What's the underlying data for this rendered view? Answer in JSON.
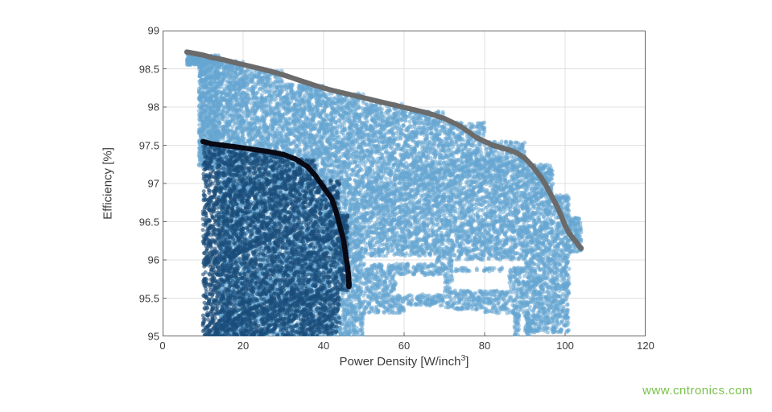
{
  "chart": {
    "type": "scatter",
    "xlabel_html": "Power Density [W/inch<sup>3</sup>]",
    "ylabel": "Efficiency [%]",
    "xlim": [
      0,
      120
    ],
    "ylim": [
      95,
      99
    ],
    "xtick_step": 20,
    "ytick_step": 0.5,
    "xticks": [
      0,
      20,
      40,
      60,
      80,
      100,
      120
    ],
    "yticks": [
      95,
      95.5,
      96,
      96.5,
      97,
      97.5,
      98,
      98.5,
      99
    ],
    "background_color": "#ffffff",
    "grid_color": "#e0e0e0",
    "axis_color": "#666666",
    "label_fontsize": 15,
    "tick_fontsize": 13,
    "font_color": "#3b3b3b",
    "series": {
      "light_blue_cloud": {
        "color": "#66a6d2",
        "opacity": 0.55,
        "marker": "circle",
        "marker_size": 5,
        "bands": [
          {
            "x": [
              6,
              9
            ],
            "y": [
              98.55,
              98.7
            ],
            "n": 140
          },
          {
            "x": [
              9,
              14
            ],
            "y": [
              97.2,
              98.68
            ],
            "n": 900
          },
          {
            "x": [
              14,
              20
            ],
            "y": [
              95.0,
              98.6
            ],
            "n": 1800
          },
          {
            "x": [
              20,
              30
            ],
            "y": [
              95.0,
              98.48
            ],
            "n": 2400
          },
          {
            "x": [
              30,
              40
            ],
            "y": [
              95.0,
              98.3
            ],
            "n": 2400
          },
          {
            "x": [
              40,
              50
            ],
            "y": [
              95.0,
              98.18
            ],
            "n": 2200
          },
          {
            "x": [
              50,
              60
            ],
            "y": [
              95.3,
              98.05
            ],
            "n": 1800
          },
          {
            "x": [
              60,
              70
            ],
            "y": [
              95.4,
              97.95
            ],
            "n": 1700
          },
          {
            "x": [
              70,
              80
            ],
            "y": [
              95.35,
              97.8
            ],
            "n": 1600
          },
          {
            "x": [
              80,
              90
            ],
            "y": [
              95.3,
              97.55
            ],
            "n": 1500
          },
          {
            "x": [
              90,
              97
            ],
            "y": [
              95.05,
              97.25
            ],
            "n": 1100
          },
          {
            "x": [
              97,
              101
            ],
            "y": [
              95.05,
              96.85
            ],
            "n": 500
          },
          {
            "x": [
              101,
              104
            ],
            "y": [
              96.1,
              96.55
            ],
            "n": 120
          }
        ],
        "gaps": [
          {
            "x": [
              58,
              70
            ],
            "y": [
              95.55,
              95.8
            ]
          },
          {
            "x": [
              72,
              86
            ],
            "y": [
              95.6,
              95.85
            ]
          },
          {
            "x": [
              50,
              68
            ],
            "y": [
              95.95,
              96.05
            ]
          },
          {
            "x": [
              72,
              90
            ],
            "y": [
              95.9,
              96.0
            ]
          }
        ],
        "spikes": [
          {
            "x": 88,
            "y": [
              95.0,
              95.3
            ]
          },
          {
            "x": 91,
            "y": [
              95.0,
              95.3
            ]
          }
        ]
      },
      "dark_blue_cloud": {
        "color": "#1a4d7a",
        "opacity": 0.6,
        "marker": "circle",
        "marker_size": 5,
        "bands": [
          {
            "x": [
              10,
              14
            ],
            "y": [
              95.0,
              97.52
            ],
            "n": 600
          },
          {
            "x": [
              14,
              20
            ],
            "y": [
              95.0,
              97.48
            ],
            "n": 900
          },
          {
            "x": [
              20,
              30
            ],
            "y": [
              95.0,
              97.42
            ],
            "n": 1300
          },
          {
            "x": [
              30,
              38
            ],
            "y": [
              95.0,
              97.32
            ],
            "n": 1000
          },
          {
            "x": [
              38,
              44
            ],
            "y": [
              95.0,
              97.05
            ],
            "n": 600
          },
          {
            "x": [
              44,
              46
            ],
            "y": [
              95.6,
              96.6
            ],
            "n": 160
          }
        ],
        "pareto_x": [
          10,
          12,
          15,
          18,
          22,
          26,
          30,
          33,
          36,
          38,
          40,
          42,
          43,
          44,
          45,
          45.5,
          46,
          46.2,
          46.3,
          46.3
        ],
        "pareto_y": [
          97.55,
          97.52,
          97.5,
          97.48,
          97.45,
          97.42,
          97.38,
          97.32,
          97.22,
          97.1,
          96.95,
          96.8,
          96.65,
          96.45,
          96.25,
          96.05,
          95.9,
          95.78,
          95.7,
          95.65
        ]
      },
      "grey_pareto": {
        "color": "#6b6b6b",
        "opacity": 0.95,
        "marker": "circle",
        "marker_size": 5,
        "x": [
          6,
          8,
          10,
          12,
          15,
          18,
          22,
          26,
          30,
          34,
          38,
          42,
          46,
          50,
          54,
          58,
          62,
          66,
          70,
          74,
          78,
          80,
          82,
          84,
          86,
          88,
          90,
          92,
          94,
          95,
          96,
          97,
          98,
          99,
          100,
          101,
          102,
          103,
          103.5,
          104
        ],
        "y": [
          98.72,
          98.7,
          98.68,
          98.65,
          98.62,
          98.58,
          98.53,
          98.48,
          98.42,
          98.35,
          98.28,
          98.22,
          98.17,
          98.12,
          98.07,
          98.02,
          97.97,
          97.92,
          97.85,
          97.75,
          97.6,
          97.55,
          97.5,
          97.47,
          97.44,
          97.4,
          97.33,
          97.22,
          97.08,
          97.0,
          96.9,
          96.8,
          96.7,
          96.58,
          96.45,
          96.35,
          96.28,
          96.22,
          96.18,
          96.15
        ]
      }
    }
  },
  "watermark": "www.cntronics.com"
}
